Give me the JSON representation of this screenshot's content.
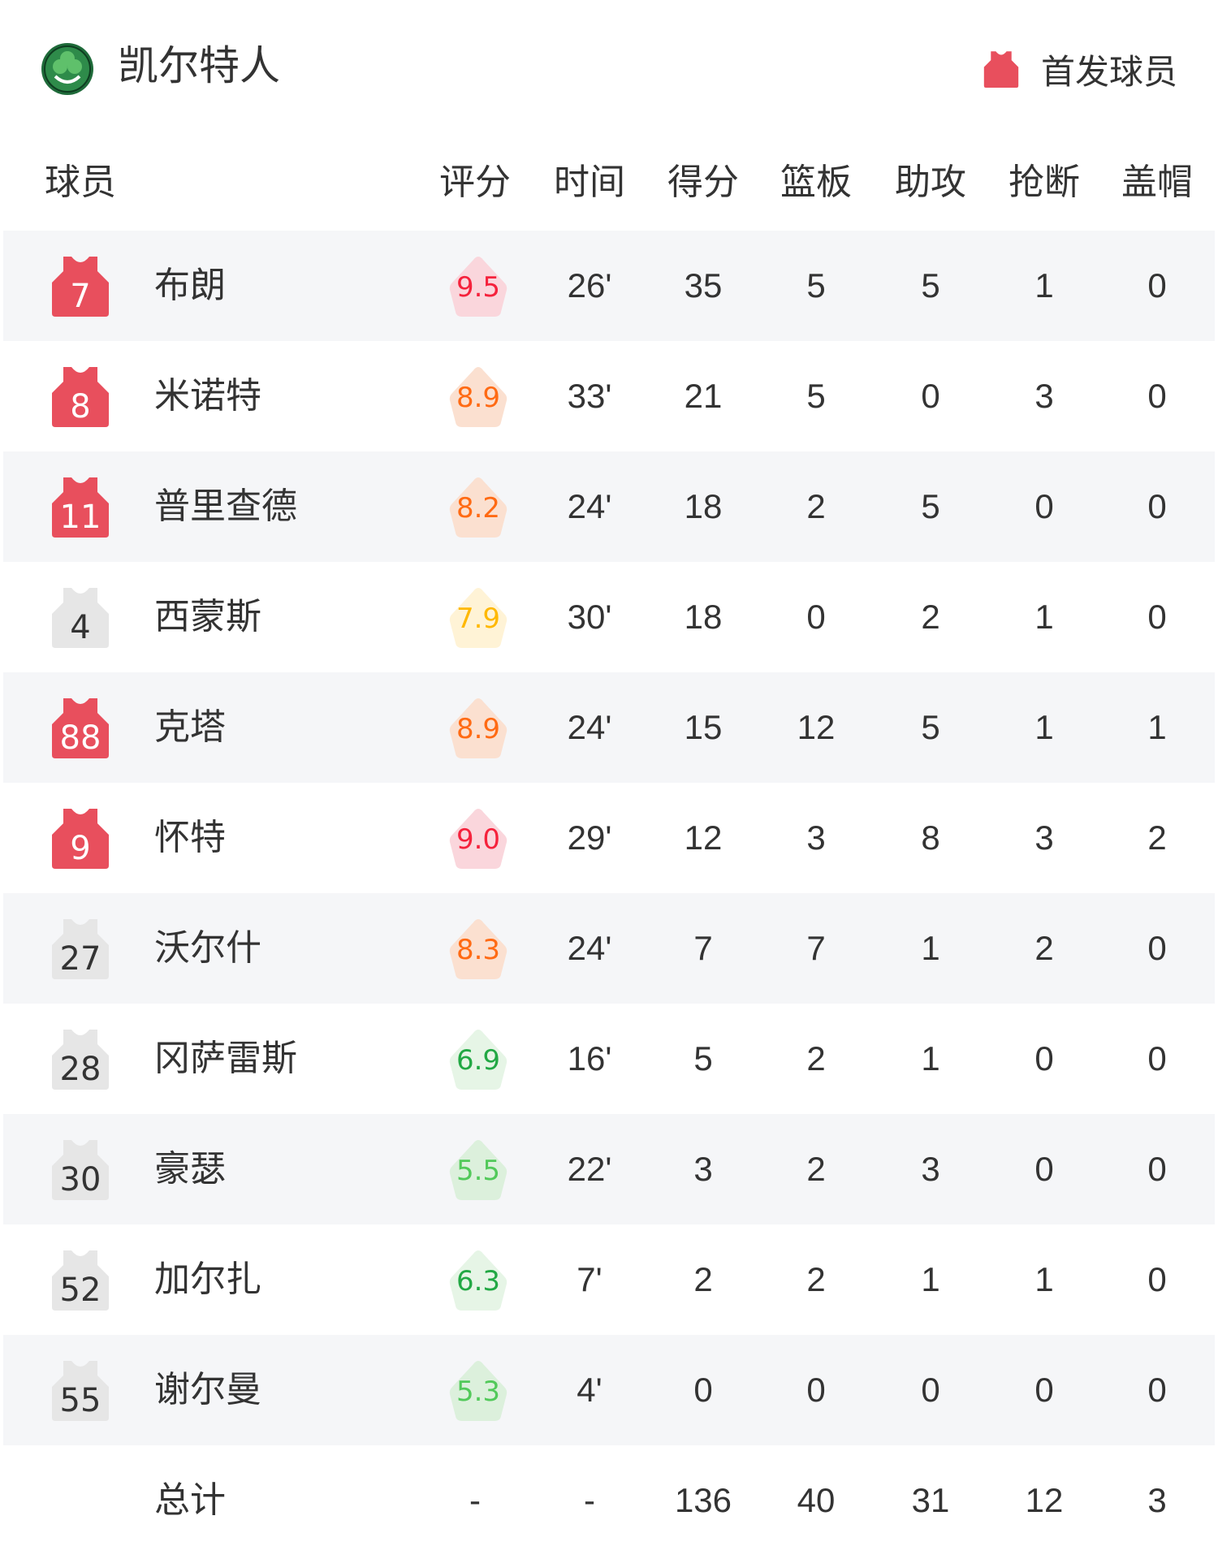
{
  "header": {
    "team": "凯尔特人",
    "logo_text": "CELTICS",
    "starter_legend": "首发球员",
    "starter_color": "#e84f5d",
    "bench_color": "#e6e6e6"
  },
  "columns": [
    "球员",
    "评分",
    "时间",
    "得分",
    "篮板",
    "助攻",
    "抢断",
    "盖帽"
  ],
  "players": [
    {
      "number": "7",
      "name": "布朗",
      "starter": true,
      "rating": "9.5",
      "tier": "red",
      "min": "26'",
      "pts": "35",
      "reb": "5",
      "ast": "5",
      "stl": "1",
      "blk": "0"
    },
    {
      "number": "8",
      "name": "米诺特",
      "starter": true,
      "rating": "8.9",
      "tier": "orange",
      "min": "33'",
      "pts": "21",
      "reb": "5",
      "ast": "0",
      "stl": "3",
      "blk": "0"
    },
    {
      "number": "11",
      "name": "普里查德",
      "starter": true,
      "rating": "8.2",
      "tier": "orange",
      "min": "24'",
      "pts": "18",
      "reb": "2",
      "ast": "5",
      "stl": "0",
      "blk": "0"
    },
    {
      "number": "4",
      "name": "西蒙斯",
      "starter": false,
      "rating": "7.9",
      "tier": "yellow",
      "min": "30'",
      "pts": "18",
      "reb": "0",
      "ast": "2",
      "stl": "1",
      "blk": "0"
    },
    {
      "number": "88",
      "name": "克塔",
      "starter": true,
      "rating": "8.9",
      "tier": "orange",
      "min": "24'",
      "pts": "15",
      "reb": "12",
      "ast": "5",
      "stl": "1",
      "blk": "1"
    },
    {
      "number": "9",
      "name": "怀特",
      "starter": true,
      "rating": "9.0",
      "tier": "red",
      "min": "29'",
      "pts": "12",
      "reb": "3",
      "ast": "8",
      "stl": "3",
      "blk": "2"
    },
    {
      "number": "27",
      "name": "沃尔什",
      "starter": false,
      "rating": "8.3",
      "tier": "orange",
      "min": "24'",
      "pts": "7",
      "reb": "7",
      "ast": "1",
      "stl": "2",
      "blk": "0"
    },
    {
      "number": "28",
      "name": "冈萨雷斯",
      "starter": false,
      "rating": "6.9",
      "tier": "green",
      "min": "16'",
      "pts": "5",
      "reb": "2",
      "ast": "1",
      "stl": "0",
      "blk": "0"
    },
    {
      "number": "30",
      "name": "豪瑟",
      "starter": false,
      "rating": "5.5",
      "tier": "lightgreen",
      "min": "22'",
      "pts": "3",
      "reb": "2",
      "ast": "3",
      "stl": "0",
      "blk": "0"
    },
    {
      "number": "52",
      "name": "加尔扎",
      "starter": false,
      "rating": "6.3",
      "tier": "green",
      "min": "7'",
      "pts": "2",
      "reb": "2",
      "ast": "1",
      "stl": "1",
      "blk": "0"
    },
    {
      "number": "55",
      "name": "谢尔曼",
      "starter": false,
      "rating": "5.3",
      "tier": "lightgreen",
      "min": "4'",
      "pts": "0",
      "reb": "0",
      "ast": "0",
      "stl": "0",
      "blk": "0"
    }
  ],
  "totals": {
    "label": "总计",
    "rating": "-",
    "min": "-",
    "pts": "136",
    "reb": "40",
    "ast": "31",
    "stl": "12",
    "blk": "3"
  },
  "rating_colors": {
    "red": {
      "text": "#f5223c",
      "bg": "#fad6dc"
    },
    "orange": {
      "text": "#ff6a13",
      "bg": "#fbe0d0"
    },
    "yellow": {
      "text": "#ffb800",
      "bg": "#fff3d6"
    },
    "green": {
      "text": "#22a844",
      "bg": "#e6f5e6"
    },
    "lightgreen": {
      "text": "#52c95a",
      "bg": "#dcf0dc"
    }
  }
}
